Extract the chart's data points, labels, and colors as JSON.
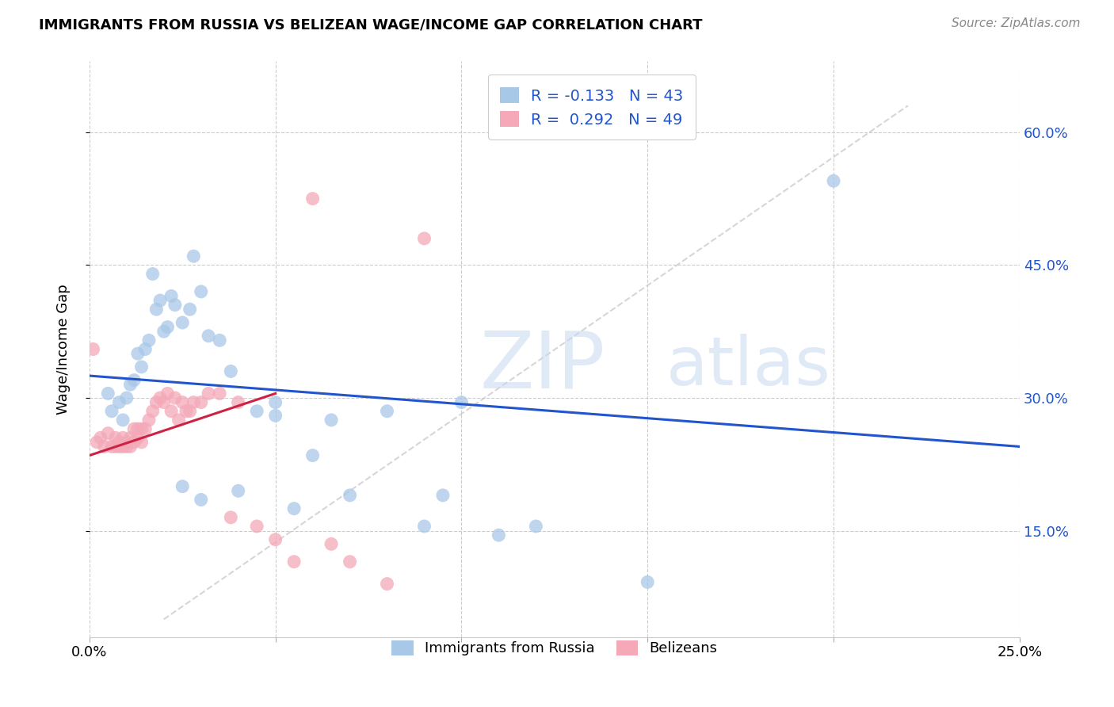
{
  "title": "IMMIGRANTS FROM RUSSIA VS BELIZEAN WAGE/INCOME GAP CORRELATION CHART",
  "source": "Source: ZipAtlas.com",
  "ylabel": "Wage/Income Gap",
  "yticks": [
    0.15,
    0.3,
    0.45,
    0.6
  ],
  "ytick_labels": [
    "15.0%",
    "30.0%",
    "45.0%",
    "60.0%"
  ],
  "xlim": [
    0.0,
    0.25
  ],
  "ylim": [
    0.03,
    0.68
  ],
  "legend_r_blue": "-0.133",
  "legend_n_blue": "43",
  "legend_r_pink": "0.292",
  "legend_n_pink": "49",
  "legend_label_blue": "Immigrants from Russia",
  "legend_label_pink": "Belizeans",
  "blue_color": "#a8c8e8",
  "pink_color": "#f4a8b8",
  "trend_blue_color": "#2255cc",
  "trend_pink_color": "#cc2244",
  "diagonal_color": "#cccccc",
  "blue_trend_x": [
    0.0,
    0.25
  ],
  "blue_trend_y": [
    0.325,
    0.245
  ],
  "pink_trend_x": [
    0.0,
    0.05
  ],
  "pink_trend_y": [
    0.235,
    0.305
  ],
  "blue_x": [
    0.005,
    0.006,
    0.008,
    0.009,
    0.01,
    0.011,
    0.012,
    0.013,
    0.014,
    0.015,
    0.016,
    0.017,
    0.018,
    0.019,
    0.02,
    0.021,
    0.022,
    0.023,
    0.025,
    0.027,
    0.028,
    0.03,
    0.032,
    0.035,
    0.038,
    0.04,
    0.045,
    0.05,
    0.055,
    0.065,
    0.07,
    0.08,
    0.09,
    0.095,
    0.1,
    0.11,
    0.15,
    0.2,
    0.05,
    0.06,
    0.12,
    0.025,
    0.03
  ],
  "blue_y": [
    0.305,
    0.285,
    0.295,
    0.275,
    0.3,
    0.315,
    0.32,
    0.35,
    0.335,
    0.355,
    0.365,
    0.44,
    0.4,
    0.41,
    0.375,
    0.38,
    0.415,
    0.405,
    0.385,
    0.4,
    0.46,
    0.42,
    0.37,
    0.365,
    0.33,
    0.195,
    0.285,
    0.28,
    0.175,
    0.275,
    0.19,
    0.285,
    0.155,
    0.19,
    0.295,
    0.145,
    0.092,
    0.545,
    0.295,
    0.235,
    0.155,
    0.2,
    0.185
  ],
  "pink_x": [
    0.001,
    0.002,
    0.003,
    0.004,
    0.005,
    0.006,
    0.007,
    0.007,
    0.008,
    0.008,
    0.009,
    0.009,
    0.01,
    0.01,
    0.011,
    0.011,
    0.012,
    0.012,
    0.013,
    0.013,
    0.014,
    0.014,
    0.015,
    0.016,
    0.017,
    0.018,
    0.019,
    0.02,
    0.021,
    0.022,
    0.023,
    0.024,
    0.025,
    0.026,
    0.027,
    0.028,
    0.03,
    0.032,
    0.035,
    0.038,
    0.04,
    0.045,
    0.05,
    0.055,
    0.06,
    0.065,
    0.07,
    0.08,
    0.09
  ],
  "pink_y": [
    0.355,
    0.25,
    0.255,
    0.245,
    0.26,
    0.245,
    0.255,
    0.245,
    0.25,
    0.245,
    0.255,
    0.245,
    0.25,
    0.245,
    0.255,
    0.245,
    0.265,
    0.25,
    0.265,
    0.255,
    0.265,
    0.25,
    0.265,
    0.275,
    0.285,
    0.295,
    0.3,
    0.295,
    0.305,
    0.285,
    0.3,
    0.275,
    0.295,
    0.285,
    0.285,
    0.295,
    0.295,
    0.305,
    0.305,
    0.165,
    0.295,
    0.155,
    0.14,
    0.115,
    0.525,
    0.135,
    0.115,
    0.09,
    0.48
  ]
}
